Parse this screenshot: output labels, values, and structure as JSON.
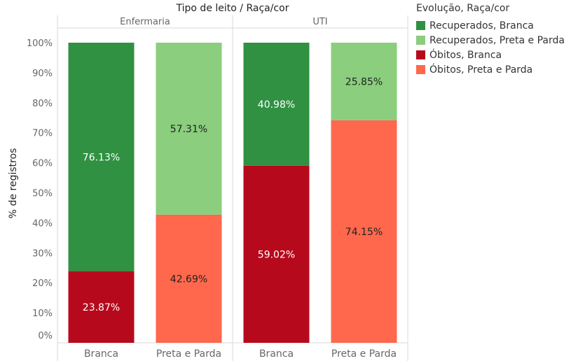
{
  "chart_data": {
    "type": "bar",
    "stacked": "100%",
    "title": "Tipo de leito  /  Raça/cor",
    "ylabel": "% de registros",
    "ylim": [
      0,
      100
    ],
    "yticks": [
      "0%",
      "10%",
      "20%",
      "30%",
      "40%",
      "50%",
      "60%",
      "70%",
      "80%",
      "90%",
      "100%"
    ],
    "panels": [
      {
        "name": "Enfermaria",
        "categories": [
          "Branca",
          "Preta e Parda"
        ]
      },
      {
        "name": "UTI",
        "categories": [
          "Branca",
          "Preta e Parda"
        ]
      }
    ],
    "series": [
      {
        "name": "Óbitos, Branca",
        "color": "#b60a1c",
        "label_color": "#ffffff",
        "values": [
          23.87,
          null,
          59.02,
          null
        ],
        "labels": [
          "23.87%",
          null,
          "59.02%",
          null
        ]
      },
      {
        "name": "Recuperados, Branca",
        "color": "#309143",
        "label_color": "#ffffff",
        "values": [
          76.13,
          null,
          40.98,
          null
        ],
        "labels": [
          "76.13%",
          null,
          "40.98%",
          null
        ]
      },
      {
        "name": "Óbitos, Preta e Parda",
        "color": "#ff684c",
        "label_color": "#222222",
        "values": [
          null,
          42.69,
          null,
          74.15
        ],
        "labels": [
          null,
          "42.69%",
          null,
          "74.15%"
        ]
      },
      {
        "name": "Recuperados, Preta e Parda",
        "color": "#8ace7e",
        "label_color": "#222222",
        "values": [
          null,
          57.31,
          null,
          25.85
        ],
        "labels": [
          null,
          "57.31%",
          null,
          "25.85%"
        ]
      }
    ],
    "legend": {
      "title": "Evolução, Raça/cor",
      "position": "right",
      "items": [
        {
          "label": "Recuperados, Branca",
          "color": "#309143"
        },
        {
          "label": "Recuperados, Preta e Parda",
          "color": "#8ace7e"
        },
        {
          "label": "Óbitos, Branca",
          "color": "#b60a1c"
        },
        {
          "label": "Óbitos, Preta e Parda",
          "color": "#ff684c"
        }
      ]
    }
  }
}
